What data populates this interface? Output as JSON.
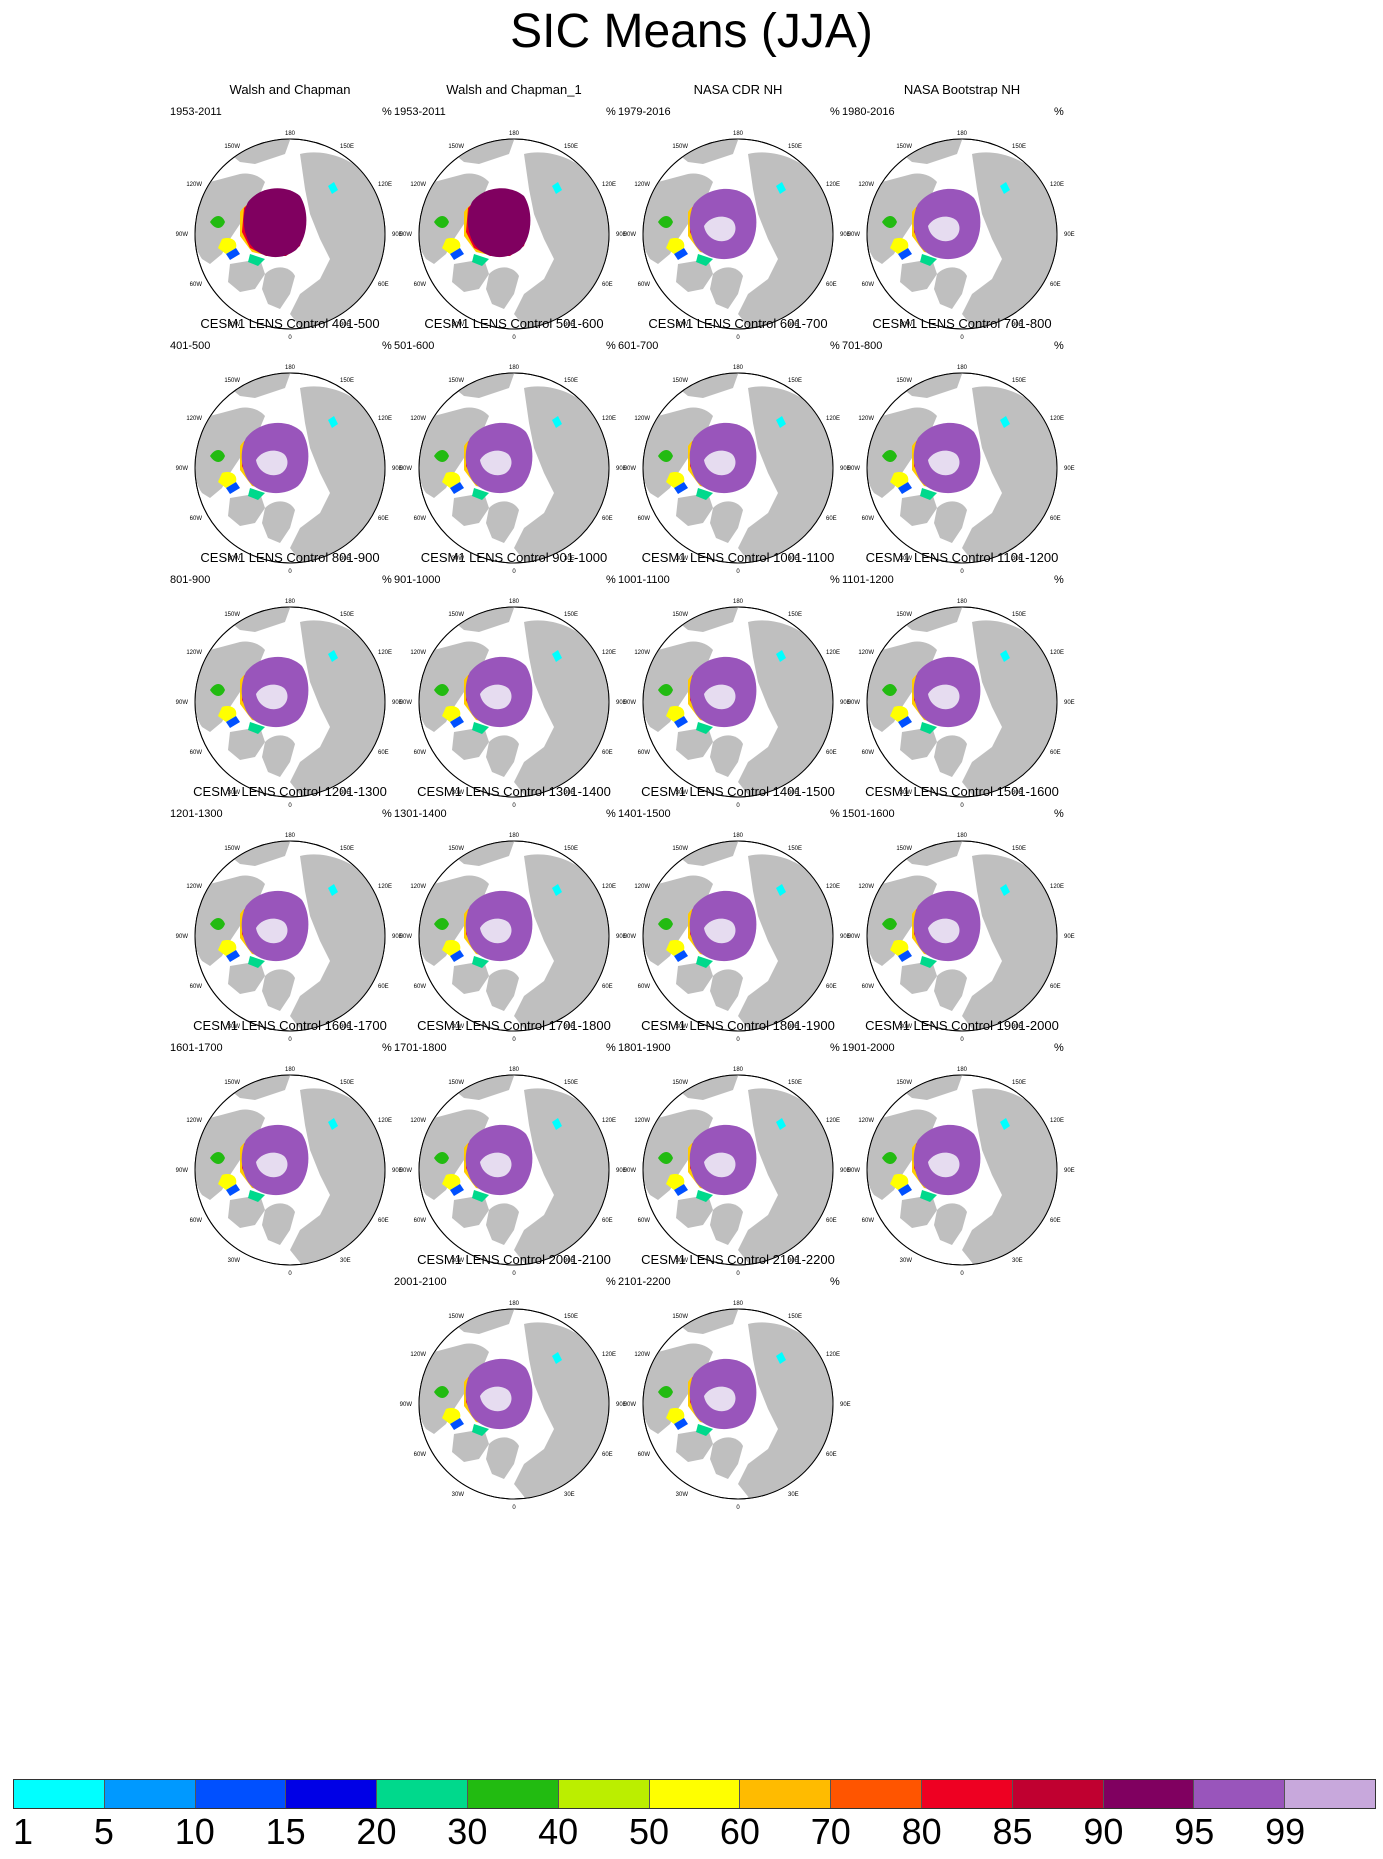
{
  "title": "SIC Means (JJA)",
  "unit": "%",
  "map_labels": {
    "top": "180",
    "bottom": "0",
    "upper_left_far": "120W",
    "upper_left_near": "150W",
    "upper_right_near": "150E",
    "upper_right_far": "120E",
    "left": "90W",
    "right": "90E",
    "lower_left_far": "60W",
    "lower_left_near": "30W",
    "lower_right_far": "60E",
    "lower_right_near": "30E"
  },
  "panels": [
    {
      "title": "Walsh and Chapman",
      "period": "1953-2011",
      "style": "obs"
    },
    {
      "title": "Walsh and Chapman_1",
      "period": "1953-2011",
      "style": "obs"
    },
    {
      "title": "NASA CDR NH",
      "period": "1979-2016",
      "style": "sat"
    },
    {
      "title": "NASA Bootstrap NH",
      "period": "1980-2016",
      "style": "sat"
    },
    {
      "title": "CESM1 LENS Control 401-500",
      "period": "401-500",
      "style": "model"
    },
    {
      "title": "CESM1 LENS Control 501-600",
      "period": "501-600",
      "style": "model"
    },
    {
      "title": "CESM1 LENS Control 601-700",
      "period": "601-700",
      "style": "model"
    },
    {
      "title": "CESM1 LENS Control 701-800",
      "period": "701-800",
      "style": "model"
    },
    {
      "title": "CESM1 LENS Control 801-900",
      "period": "801-900",
      "style": "model"
    },
    {
      "title": "CESM1 LENS Control 901-1000",
      "period": "901-1000",
      "style": "model"
    },
    {
      "title": "CESM1 LENS Control 1001-1100",
      "period": "1001-1100",
      "style": "model"
    },
    {
      "title": "CESM1 LENS Control 1101-1200",
      "period": "1101-1200",
      "style": "model"
    },
    {
      "title": "CESM1 LENS Control 1201-1300",
      "period": "1201-1300",
      "style": "model"
    },
    {
      "title": "CESM1 LENS Control 1301-1400",
      "period": "1301-1400",
      "style": "model"
    },
    {
      "title": "CESM1 LENS Control 1401-1500",
      "period": "1401-1500",
      "style": "model"
    },
    {
      "title": "CESM1 LENS Control 1501-1600",
      "period": "1501-1600",
      "style": "model"
    },
    {
      "title": "CESM1 LENS Control 1601-1700",
      "period": "1601-1700",
      "style": "model"
    },
    {
      "title": "CESM1 LENS Control 1701-1800",
      "period": "1701-1800",
      "style": "model"
    },
    {
      "title": "CESM1 LENS Control 1801-1900",
      "period": "1801-1900",
      "style": "model"
    },
    {
      "title": "CESM1 LENS Control 1901-2000",
      "period": "1901-2000",
      "style": "model"
    },
    {
      "title": "CESM1 LENS Control 2001-2100",
      "period": "2001-2100",
      "style": "model"
    },
    {
      "title": "CESM1 LENS Control 2101-2200",
      "period": "2101-2200",
      "style": "model"
    }
  ],
  "colorbar": {
    "labels": [
      "1",
      "5",
      "10",
      "15",
      "20",
      "30",
      "40",
      "50",
      "60",
      "70",
      "80",
      "85",
      "90",
      "95",
      "99"
    ],
    "colors": [
      "#00ffff",
      "#0099ff",
      "#0050ff",
      "#0000e6",
      "#00d98c",
      "#22bb11",
      "#bbee00",
      "#ffff00",
      "#ffbb00",
      "#ff5500",
      "#ee0022",
      "#c00030",
      "#800060",
      "#9955bb",
      "#c8a8dc"
    ]
  },
  "colors": {
    "land": "#bfbfbf",
    "ocean": "#ffffff",
    "ice_core_obs": "#800060",
    "ice_core_sat": "#9955bb",
    "ice_center_sat": "#e6dcf0"
  }
}
